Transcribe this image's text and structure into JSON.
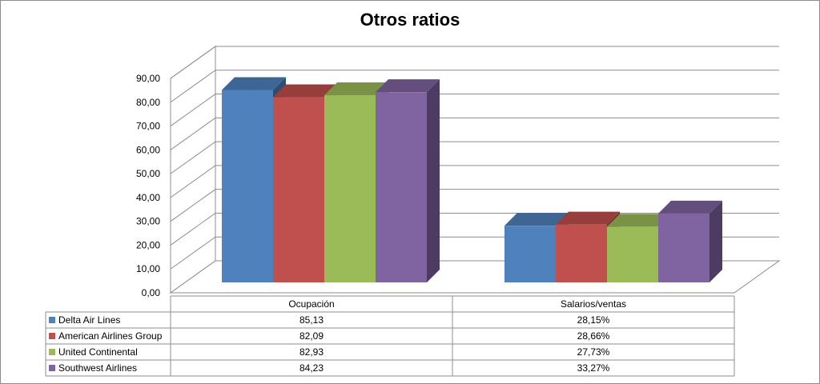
{
  "chart_data": {
    "type": "bar",
    "title": "Otros ratios",
    "categories": [
      "Ocupación",
      "Salarios/ventas"
    ],
    "series": [
      {
        "name": "Delta Air Lines",
        "color": "#4f81bd",
        "values": [
          85.13,
          28.15
        ],
        "labels": [
          "85,13",
          "28,15%"
        ]
      },
      {
        "name": "American Airlines Group",
        "color": "#c0504d",
        "values": [
          82.09,
          28.66
        ],
        "labels": [
          "82,09",
          "28,66%"
        ]
      },
      {
        "name": "United Continental",
        "color": "#9bbb59",
        "values": [
          82.93,
          27.73
        ],
        "labels": [
          "82,93",
          "27,73%"
        ]
      },
      {
        "name": "Southwest Airlines",
        "color": "#8064a2",
        "values": [
          84.23,
          33.27
        ],
        "labels": [
          "84,23",
          "33,27%"
        ]
      }
    ],
    "ylim": [
      0,
      90
    ],
    "ytick_labels": [
      "0,00",
      "10,00",
      "20,00",
      "30,00",
      "40,00",
      "50,00",
      "60,00",
      "70,00",
      "80,00",
      "90,00"
    ],
    "grid": true,
    "legend": "data-table-below",
    "three_d": true
  }
}
